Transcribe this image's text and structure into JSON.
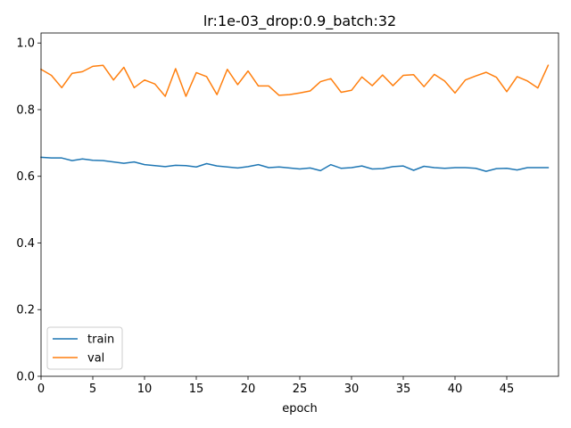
{
  "chart_data": {
    "type": "line",
    "title": "lr:1e-03_drop:0.9_batch:32",
    "xlabel": "epoch",
    "ylabel": "",
    "xlim": [
      0,
      50
    ],
    "ylim": [
      0.0,
      1.03
    ],
    "x_ticks": [
      "0",
      "5",
      "10",
      "15",
      "20",
      "25",
      "30",
      "35",
      "40",
      "45"
    ],
    "y_ticks": [
      "0.0",
      "0.2",
      "0.4",
      "0.6",
      "0.8",
      "1.0"
    ],
    "grid": false,
    "legend_position": "lower-left",
    "x": [
      0,
      1,
      2,
      3,
      4,
      5,
      6,
      7,
      8,
      9,
      10,
      11,
      12,
      13,
      14,
      15,
      16,
      17,
      18,
      19,
      20,
      21,
      22,
      23,
      24,
      25,
      26,
      27,
      28,
      29,
      30,
      31,
      32,
      33,
      34,
      35,
      36,
      37,
      38,
      39,
      40,
      41,
      42,
      43,
      44,
      45,
      46,
      47,
      48,
      49
    ],
    "series": [
      {
        "name": "train",
        "color": "#1f77b4",
        "values": [
          0.657,
          0.655,
          0.655,
          0.647,
          0.652,
          0.648,
          0.647,
          0.643,
          0.639,
          0.643,
          0.635,
          0.632,
          0.629,
          0.633,
          0.632,
          0.628,
          0.638,
          0.631,
          0.628,
          0.625,
          0.629,
          0.635,
          0.626,
          0.628,
          0.625,
          0.622,
          0.625,
          0.617,
          0.635,
          0.624,
          0.626,
          0.631,
          0.622,
          0.623,
          0.629,
          0.631,
          0.618,
          0.63,
          0.626,
          0.624,
          0.626,
          0.626,
          0.624,
          0.615,
          0.623,
          0.624,
          0.619,
          0.626,
          0.626,
          0.626
        ]
      },
      {
        "name": "val",
        "color": "#ff7f0e",
        "values": [
          0.921,
          0.903,
          0.866,
          0.909,
          0.914,
          0.93,
          0.933,
          0.889,
          0.927,
          0.866,
          0.889,
          0.877,
          0.84,
          0.923,
          0.84,
          0.911,
          0.899,
          0.845,
          0.921,
          0.875,
          0.916,
          0.871,
          0.871,
          0.843,
          0.845,
          0.85,
          0.856,
          0.884,
          0.893,
          0.852,
          0.858,
          0.898,
          0.872,
          0.904,
          0.872,
          0.903,
          0.905,
          0.869,
          0.906,
          0.886,
          0.85,
          0.889,
          0.901,
          0.912,
          0.897,
          0.854,
          0.899,
          0.886,
          0.865,
          0.933
        ]
      }
    ]
  }
}
